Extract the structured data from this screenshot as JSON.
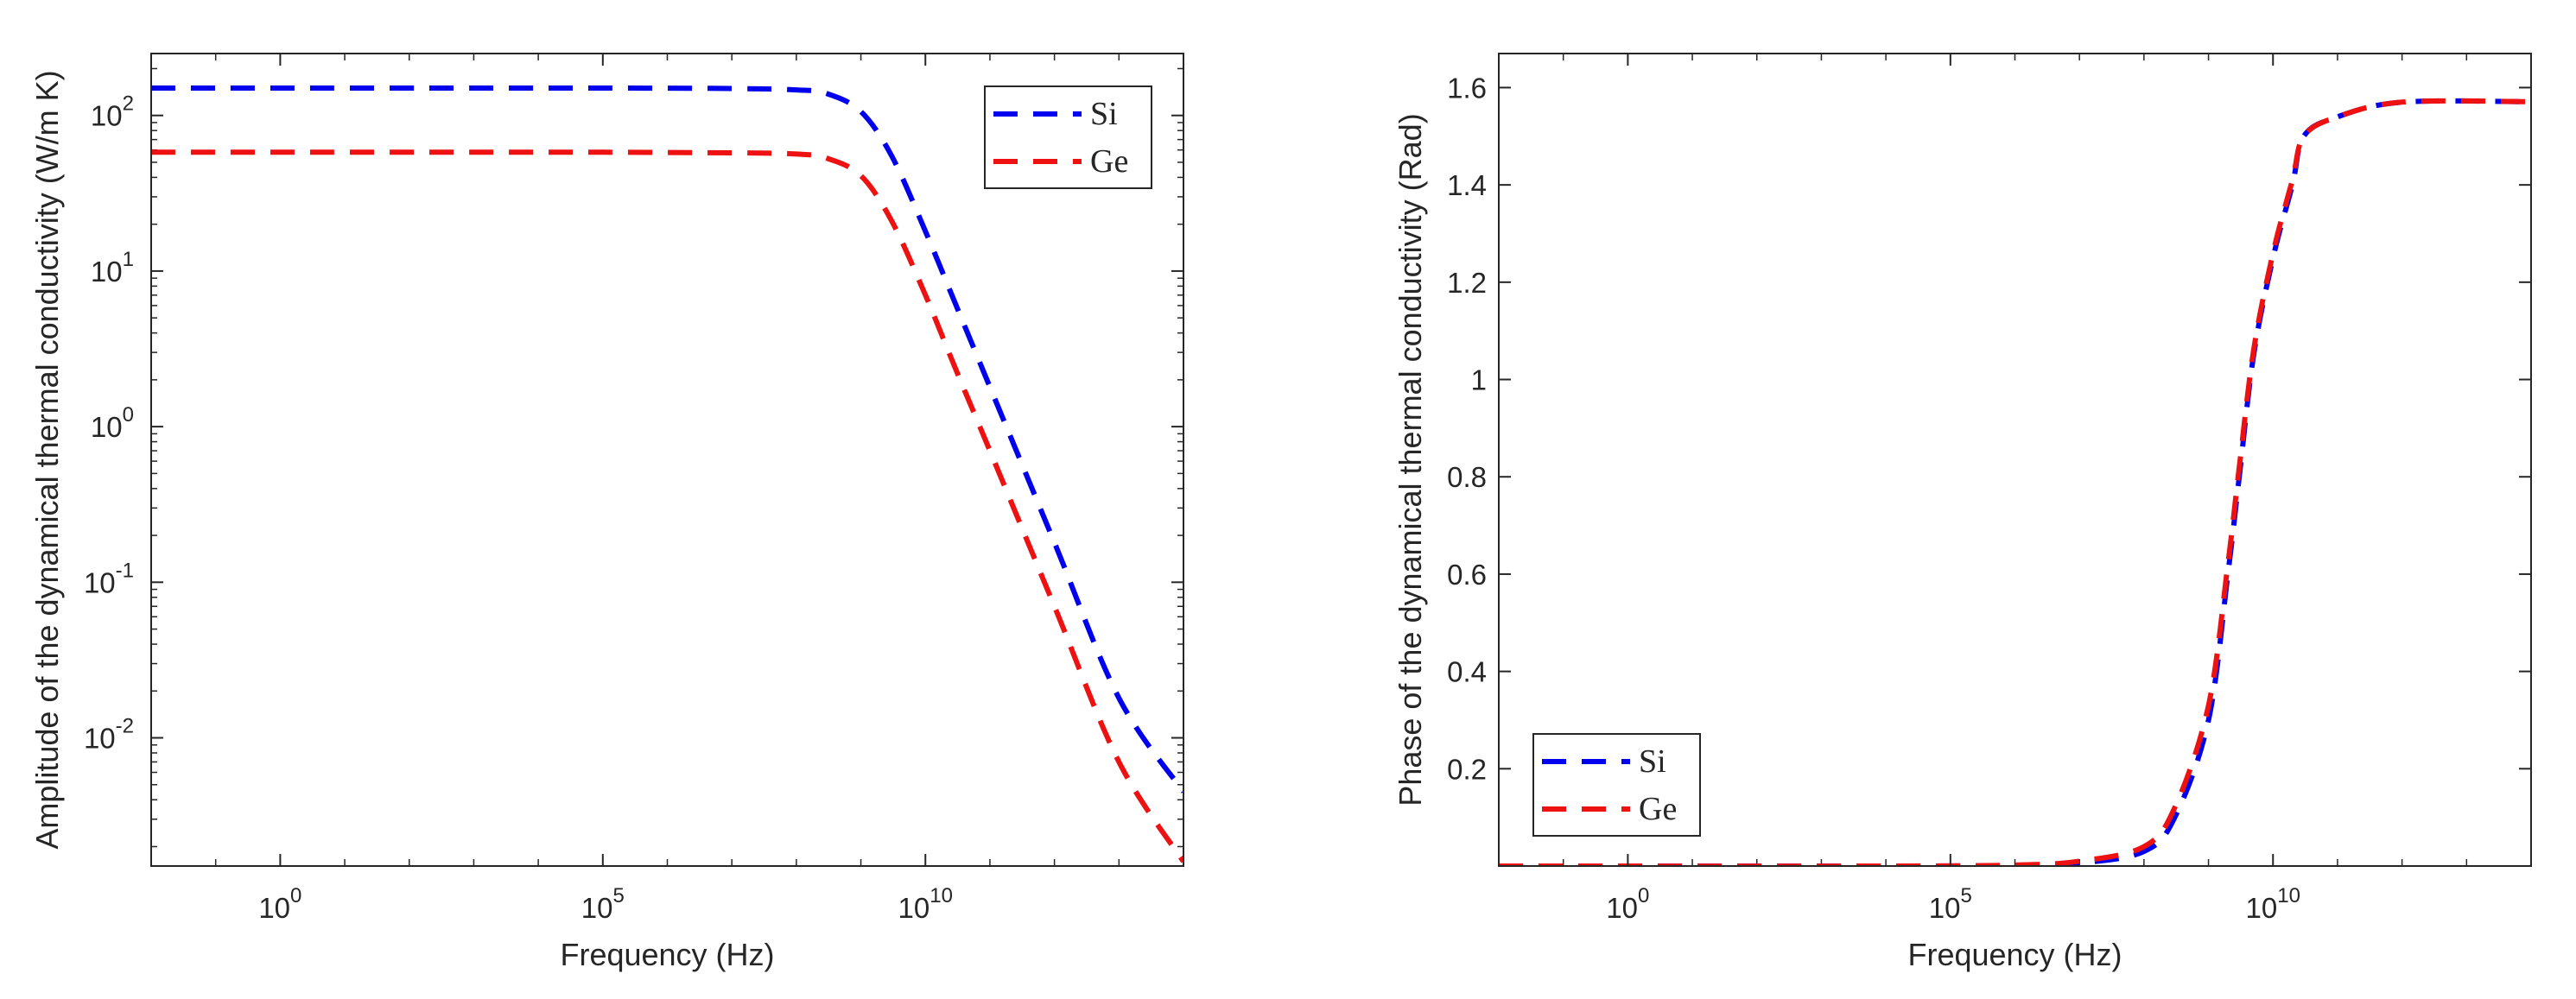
{
  "colors": {
    "si": "#0000ee",
    "ge": "#ee1111",
    "axis": "#262626",
    "background": "#ffffff"
  },
  "chart_data": [
    {
      "type": "line",
      "title": "",
      "xlabel": "Frequency (Hz)",
      "ylabel": "Amplitude of the dynamical thermal conductivity (W/m K)",
      "xscale": "log",
      "yscale": "log",
      "xlim": [
        0.01,
        100000000000000.0
      ],
      "ylim": [
        0.0015,
        250
      ],
      "xticks": [
        {
          "value": 1,
          "label": "10",
          "exp": "0"
        },
        {
          "value": 100000.0,
          "label": "10",
          "exp": "5"
        },
        {
          "value": 10000000000.0,
          "label": "10",
          "exp": "10"
        }
      ],
      "yticks": [
        {
          "value": 0.01,
          "label": "10",
          "exp": "-2"
        },
        {
          "value": 0.1,
          "label": "10",
          "exp": "-1"
        },
        {
          "value": 1,
          "label": "10",
          "exp": "0"
        },
        {
          "value": 10,
          "label": "10",
          "exp": "1"
        },
        {
          "value": 100,
          "label": "10",
          "exp": "2"
        }
      ],
      "legend_position": "top-right",
      "series": [
        {
          "name": "Si",
          "style": "dashed",
          "x": [
            0.01,
            1,
            1000.0,
            100000.0,
            10000000.0,
            100000000.0,
            300000000.0,
            1000000000.0,
            3000000000.0,
            10000000000.0,
            30000000000.0,
            100000000000.0,
            1000000000000.0,
            10000000000000.0,
            100000000000000.0
          ],
          "y": [
            150,
            150,
            150,
            150,
            149,
            146,
            138,
            106,
            55,
            18,
            6.0,
            1.8,
            0.18,
            0.018,
            0.0045
          ]
        },
        {
          "name": "Ge",
          "style": "dashed",
          "x": [
            0.01,
            1,
            1000.0,
            100000.0,
            10000000.0,
            100000000.0,
            300000000.0,
            1000000000.0,
            3000000000.0,
            10000000000.0,
            30000000000.0,
            100000000000.0,
            1000000000000.0,
            10000000000000.0,
            100000000000000.0
          ],
          "y": [
            58,
            58,
            58,
            58,
            57.5,
            56.5,
            53,
            41,
            21,
            7,
            2.3,
            0.7,
            0.07,
            0.007,
            0.0016
          ]
        }
      ]
    },
    {
      "type": "line",
      "title": "",
      "xlabel": "Frequency (Hz)",
      "ylabel": "Phase of the dynamical thermal conductivity (Rad)",
      "xscale": "log",
      "yscale": "linear",
      "xlim": [
        0.01,
        100000000000000.0
      ],
      "ylim": [
        0,
        1.67
      ],
      "xticks": [
        {
          "value": 1,
          "label": "10",
          "exp": "0"
        },
        {
          "value": 100000.0,
          "label": "10",
          "exp": "5"
        },
        {
          "value": 10000000000.0,
          "label": "10",
          "exp": "10"
        }
      ],
      "yticks": [
        {
          "value": 0.2,
          "label": "0.2"
        },
        {
          "value": 0.4,
          "label": "0.4"
        },
        {
          "value": 0.6,
          "label": "0.6"
        },
        {
          "value": 0.8,
          "label": "0.8"
        },
        {
          "value": 1,
          "label": "1"
        },
        {
          "value": 1.2,
          "label": "1.2"
        },
        {
          "value": 1.4,
          "label": "1.4"
        },
        {
          "value": 1.6,
          "label": "1.6"
        }
      ],
      "legend_position": "bottom-left",
      "series": [
        {
          "name": "Si",
          "style": "dashed",
          "x": [
            0.01,
            10000.0,
            1000000.0,
            10000000.0,
            100000000.0,
            300000000.0,
            1000000000.0,
            2000000000.0,
            3000000000.0,
            5000000000.0,
            10000000000.0,
            20000000000.0,
            30000000000.0,
            100000000000.0,
            1000000000000.0,
            100000000000000.0
          ],
          "y": [
            0,
            0,
            0.001,
            0.006,
            0.03,
            0.1,
            0.3,
            0.6,
            0.8,
            1.05,
            1.25,
            1.4,
            1.5,
            1.54,
            1.57,
            1.571
          ]
        },
        {
          "name": "Ge",
          "style": "dashed",
          "x": [
            0.01,
            10000.0,
            1000000.0,
            10000000.0,
            100000000.0,
            300000000.0,
            1000000000.0,
            2000000000.0,
            3000000000.0,
            5000000000.0,
            10000000000.0,
            20000000000.0,
            30000000000.0,
            100000000000.0,
            1000000000000.0,
            100000000000000.0
          ],
          "y": [
            0,
            0,
            0.002,
            0.01,
            0.04,
            0.12,
            0.33,
            0.62,
            0.82,
            1.06,
            1.26,
            1.41,
            1.5,
            1.54,
            1.57,
            1.571
          ]
        }
      ]
    }
  ]
}
